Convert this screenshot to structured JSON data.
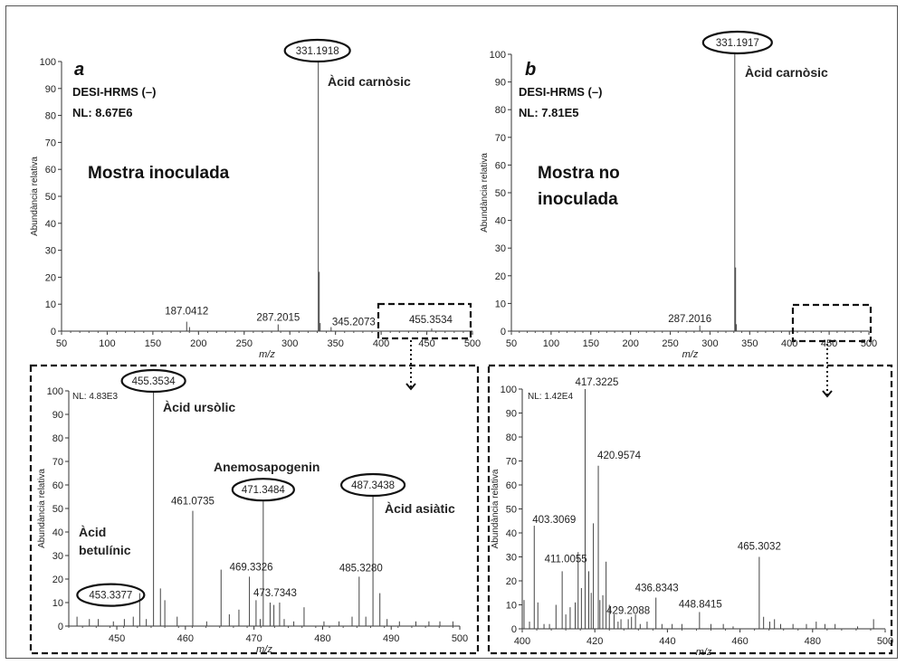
{
  "chart_data": [
    {
      "id": "a_top",
      "type": "line",
      "panel_letter": "a",
      "xlabel": "m/z",
      "ylabel": "Abundància relativa",
      "xlim": [
        50,
        500
      ],
      "ylim": [
        0,
        100
      ],
      "xticks": [
        "50",
        "100",
        "150",
        "200",
        "250",
        "300",
        "350",
        "400",
        "450",
        "500"
      ],
      "yticks": [
        "0",
        "10",
        "20",
        "30",
        "40",
        "50",
        "60",
        "70",
        "80",
        "90",
        "100"
      ],
      "info_lines": [
        "DESI-HRMS (–)",
        "NL: 8.67E6"
      ],
      "big_label_lines": [
        "Mostra inoculada"
      ],
      "compounds": [
        "Àcid carnòsic"
      ],
      "peaks": [
        {
          "x": 187.0412,
          "y": 3.5,
          "label": "187.0412",
          "circled": false
        },
        {
          "x": 190.1,
          "y": 1.5
        },
        {
          "x": 287.2015,
          "y": 2.5,
          "label": "287.2015",
          "circled": false
        },
        {
          "x": 331.1918,
          "y": 100,
          "label": "331.1918",
          "circled": true
        },
        {
          "x": 332.19,
          "y": 22
        },
        {
          "x": 333.2,
          "y": 3
        },
        {
          "x": 345.2073,
          "y": 1.5,
          "label": "345.2073",
          "circled": false
        },
        {
          "x": 455.3534,
          "y": 1,
          "label": "455.3534",
          "circled": false
        }
      ]
    },
    {
      "id": "b_top",
      "type": "line",
      "panel_letter": "b",
      "xlabel": "m/z",
      "ylabel": "Abundància relativa",
      "xlim": [
        50,
        500
      ],
      "ylim": [
        0,
        100
      ],
      "xticks": [
        "50",
        "100",
        "150",
        "200",
        "250",
        "300",
        "350",
        "400",
        "450",
        "500"
      ],
      "yticks": [
        "0",
        "10",
        "20",
        "30",
        "40",
        "50",
        "60",
        "70",
        "80",
        "90",
        "100"
      ],
      "info_lines": [
        "DESI-HRMS (–)",
        "NL: 7.81E5"
      ],
      "big_label_lines": [
        "Mostra no",
        "inoculada"
      ],
      "compounds": [
        "Àcid carnòsic"
      ],
      "peaks": [
        {
          "x": 287.2016,
          "y": 2,
          "label": "287.2016",
          "circled": false
        },
        {
          "x": 331.1917,
          "y": 100,
          "label": "331.1917",
          "circled": true
        },
        {
          "x": 332.19,
          "y": 23
        },
        {
          "x": 333.2,
          "y": 2.5
        }
      ]
    },
    {
      "id": "a_zoom",
      "type": "line",
      "xlabel": "m/z",
      "ylabel": "Abundància relativa",
      "xlim": [
        443,
        500
      ],
      "ylim": [
        0,
        100
      ],
      "xticks": [
        "450",
        "460",
        "470",
        "480",
        "490",
        "500"
      ],
      "yticks": [
        "0",
        "10",
        "20",
        "30",
        "40",
        "50",
        "60",
        "70",
        "80",
        "90",
        "100"
      ],
      "nl": "NL: 4.83E3",
      "compounds": [
        "Àcid ursòlic",
        "Anemosapogenin",
        "Àcid asiàtic",
        "Àcid",
        "betulínic"
      ],
      "peaks": [
        {
          "x": 444.2,
          "y": 4
        },
        {
          "x": 446.0,
          "y": 3
        },
        {
          "x": 447.3,
          "y": 3
        },
        {
          "x": 449.5,
          "y": 2
        },
        {
          "x": 451.1,
          "y": 3
        },
        {
          "x": 452.4,
          "y": 4
        },
        {
          "x": 453.3377,
          "y": 14,
          "label": "453.3377",
          "circled": true
        },
        {
          "x": 454.3,
          "y": 3
        },
        {
          "x": 455.3534,
          "y": 100,
          "label": "455.3534",
          "circled": true
        },
        {
          "x": 456.36,
          "y": 16
        },
        {
          "x": 457.0,
          "y": 11
        },
        {
          "x": 458.8,
          "y": 4
        },
        {
          "x": 461.0735,
          "y": 49,
          "label": "461.0735",
          "circled": false
        },
        {
          "x": 463.1,
          "y": 2
        },
        {
          "x": 465.2,
          "y": 24
        },
        {
          "x": 466.4,
          "y": 5
        },
        {
          "x": 467.8,
          "y": 7
        },
        {
          "x": 469.3326,
          "y": 21,
          "label": "469.3326",
          "circled": false
        },
        {
          "x": 470.3,
          "y": 11
        },
        {
          "x": 470.9,
          "y": 3
        },
        {
          "x": 471.3484,
          "y": 53,
          "label": "471.3484",
          "circled": true
        },
        {
          "x": 472.35,
          "y": 10
        },
        {
          "x": 472.9,
          "y": 9
        },
        {
          "x": 473.7343,
          "y": 10,
          "label": "473.7343",
          "circled": false
        },
        {
          "x": 474.4,
          "y": 3
        },
        {
          "x": 475.8,
          "y": 2
        },
        {
          "x": 477.3,
          "y": 8
        },
        {
          "x": 480.2,
          "y": 2
        },
        {
          "x": 482.4,
          "y": 2
        },
        {
          "x": 484.3,
          "y": 4
        },
        {
          "x": 485.328,
          "y": 21,
          "label": "485.3280",
          "circled": false
        },
        {
          "x": 486.3,
          "y": 4
        },
        {
          "x": 487.3438,
          "y": 55,
          "label": "487.3438",
          "circled": true
        },
        {
          "x": 488.35,
          "y": 14
        },
        {
          "x": 489.4,
          "y": 3
        },
        {
          "x": 491.2,
          "y": 2
        },
        {
          "x": 493.6,
          "y": 2
        },
        {
          "x": 495.5,
          "y": 2
        },
        {
          "x": 497.1,
          "y": 2
        },
        {
          "x": 499.0,
          "y": 2
        }
      ]
    },
    {
      "id": "b_zoom",
      "type": "line",
      "xlabel": "m/z",
      "ylabel": "Abundància relativa",
      "xlim": [
        400,
        500
      ],
      "ylim": [
        0,
        100
      ],
      "xticks": [
        "400",
        "420",
        "440",
        "460",
        "480",
        "500"
      ],
      "yticks": [
        "0",
        "10",
        "20",
        "30",
        "40",
        "50",
        "60",
        "70",
        "80",
        "90",
        "100"
      ],
      "nl": "NL: 1.42E4",
      "peaks": [
        {
          "x": 400.5,
          "y": 12
        },
        {
          "x": 402.0,
          "y": 3
        },
        {
          "x": 403.3069,
          "y": 43,
          "label": "403.3069",
          "circled": false
        },
        {
          "x": 404.3,
          "y": 11
        },
        {
          "x": 406.0,
          "y": 2
        },
        {
          "x": 407.5,
          "y": 2
        },
        {
          "x": 409.3,
          "y": 10
        },
        {
          "x": 411.0055,
          "y": 24,
          "label": "411.0055",
          "circled": false
        },
        {
          "x": 412.0,
          "y": 6
        },
        {
          "x": 413.2,
          "y": 9
        },
        {
          "x": 414.6,
          "y": 11
        },
        {
          "x": 415.4,
          "y": 32
        },
        {
          "x": 416.3,
          "y": 17
        },
        {
          "x": 417.3225,
          "y": 100,
          "label": "417.3225",
          "circled": false
        },
        {
          "x": 418.33,
          "y": 24
        },
        {
          "x": 419.0,
          "y": 15
        },
        {
          "x": 419.6,
          "y": 44
        },
        {
          "x": 420.9574,
          "y": 68,
          "label": "420.9574",
          "circled": false
        },
        {
          "x": 421.4,
          "y": 12
        },
        {
          "x": 422.2,
          "y": 14
        },
        {
          "x": 423.1,
          "y": 28
        },
        {
          "x": 424.0,
          "y": 10
        },
        {
          "x": 425.3,
          "y": 6
        },
        {
          "x": 426.4,
          "y": 3
        },
        {
          "x": 427.2,
          "y": 4
        },
        {
          "x": 429.2088,
          "y": 4,
          "label": "429.2088",
          "circled": false
        },
        {
          "x": 430.1,
          "y": 5
        },
        {
          "x": 431.2,
          "y": 6
        },
        {
          "x": 432.5,
          "y": 2
        },
        {
          "x": 434.4,
          "y": 3
        },
        {
          "x": 436.8343,
          "y": 13,
          "label": "436.8343",
          "circled": false
        },
        {
          "x": 438.5,
          "y": 2
        },
        {
          "x": 441.3,
          "y": 2
        },
        {
          "x": 444.0,
          "y": 2
        },
        {
          "x": 448.8415,
          "y": 7,
          "label": "448.8415",
          "circled": false
        },
        {
          "x": 452.0,
          "y": 2
        },
        {
          "x": 455.4,
          "y": 2
        },
        {
          "x": 458.1,
          "y": 1
        },
        {
          "x": 465.3032,
          "y": 30,
          "label": "465.3032",
          "circled": false
        },
        {
          "x": 466.5,
          "y": 5
        },
        {
          "x": 468.2,
          "y": 3
        },
        {
          "x": 469.5,
          "y": 4
        },
        {
          "x": 471.2,
          "y": 2
        },
        {
          "x": 474.6,
          "y": 2
        },
        {
          "x": 478.3,
          "y": 2
        },
        {
          "x": 481.0,
          "y": 3
        },
        {
          "x": 483.4,
          "y": 2
        },
        {
          "x": 486.2,
          "y": 2
        },
        {
          "x": 492.4,
          "y": 1
        },
        {
          "x": 496.8,
          "y": 4
        }
      ]
    }
  ]
}
